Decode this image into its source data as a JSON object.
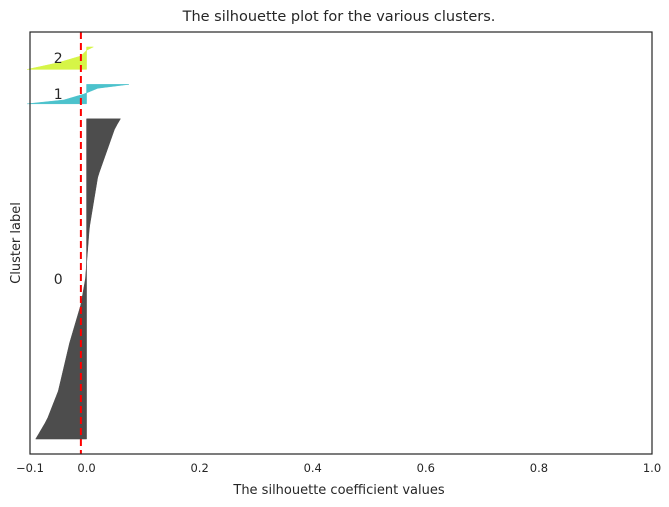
{
  "chart_data": {
    "type": "silhouette",
    "title": "The silhouette plot for the various clusters.",
    "xlabel": "The silhouette coefficient values",
    "ylabel": "Cluster label",
    "xlim": [
      -0.1,
      1.0
    ],
    "xticks": [
      -0.1,
      0.0,
      0.2,
      0.4,
      0.6,
      0.8,
      1.0
    ],
    "xtick_labels": [
      "−0.1",
      "0.0",
      "0.2",
      "0.4",
      "0.6",
      "0.8",
      "1.0"
    ],
    "yticks_shown": false,
    "grid": false,
    "average_silhouette": -0.01,
    "average_line_color": "#ff0000",
    "clusters": [
      {
        "label": "0",
        "color": "#4d4d4d",
        "size": 214,
        "max_value": 0.06,
        "min_value": -0.09,
        "profile": [
          [
            0.0,
            0.06
          ],
          [
            0.03,
            0.05
          ],
          [
            0.08,
            0.04
          ],
          [
            0.18,
            0.02
          ],
          [
            0.34,
            0.005
          ],
          [
            0.5,
            -0.002
          ],
          [
            0.58,
            -0.01
          ],
          [
            0.7,
            -0.03
          ],
          [
            0.85,
            -0.05
          ],
          [
            0.94,
            -0.07
          ],
          [
            1.0,
            -0.09
          ]
        ]
      },
      {
        "label": "1",
        "color": "#4cc2cc",
        "size": 13,
        "max_value": 0.075,
        "min_value": -0.105,
        "profile": [
          [
            0.0,
            0.075
          ],
          [
            0.2,
            0.02
          ],
          [
            0.5,
            -0.005
          ],
          [
            0.8,
            -0.04
          ],
          [
            1.0,
            -0.105
          ]
        ]
      },
      {
        "label": "2",
        "color": "#d6f547",
        "size": 15,
        "max_value": 0.012,
        "min_value": -0.105,
        "profile": [
          [
            0.0,
            0.012
          ],
          [
            0.15,
            0.0
          ],
          [
            0.4,
            -0.01
          ],
          [
            0.7,
            -0.05
          ],
          [
            1.0,
            -0.105
          ]
        ]
      }
    ]
  }
}
